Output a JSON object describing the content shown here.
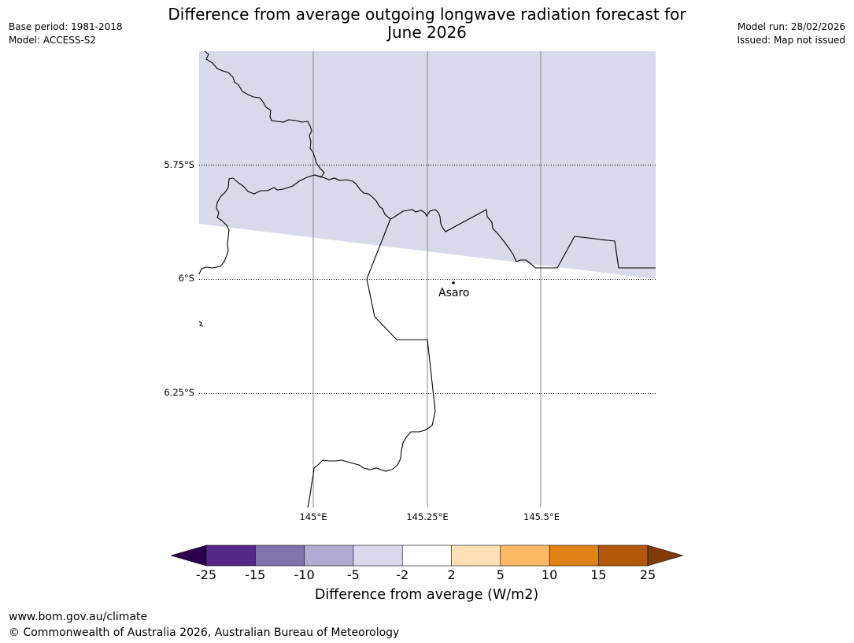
{
  "header": {
    "title_line1": "Difference from average outgoing longwave radiation forecast for",
    "title_line2": "June 2026",
    "base_period": "Base period: 1981-2018",
    "model": "Model: ACCESS-S2",
    "model_run": "Model run: 28/02/2026",
    "issued": "Issued: Map not issued"
  },
  "map": {
    "latitude_labels": [
      "5.75°S",
      "6°S",
      "6.25°S"
    ],
    "longitude_labels": [
      "145°E",
      "145.25°E",
      "145.5°E"
    ],
    "places": [
      {
        "name": "Asaro"
      }
    ],
    "fill_color": "#d8d9ea"
  },
  "colorbar": {
    "title": "Difference from average (W/m2)",
    "tick_labels": [
      "-25",
      "-15",
      "-10",
      "-5",
      "-2",
      "2",
      "5",
      "10",
      "15",
      "25"
    ],
    "colors": {
      "below_min": "#2d004b",
      "bins": [
        "#542788",
        "#8073ac",
        "#b2abd2",
        "#d8daeb",
        "#ffffff",
        "#fee0b6",
        "#fdb863",
        "#e08214",
        "#b35806"
      ],
      "above_max": "#7f3b08"
    }
  },
  "footer": {
    "url": "www.bom.gov.au/climate",
    "copyright": "© Commonwealth of Australia 2026, Australian Bureau of Meteorology"
  }
}
